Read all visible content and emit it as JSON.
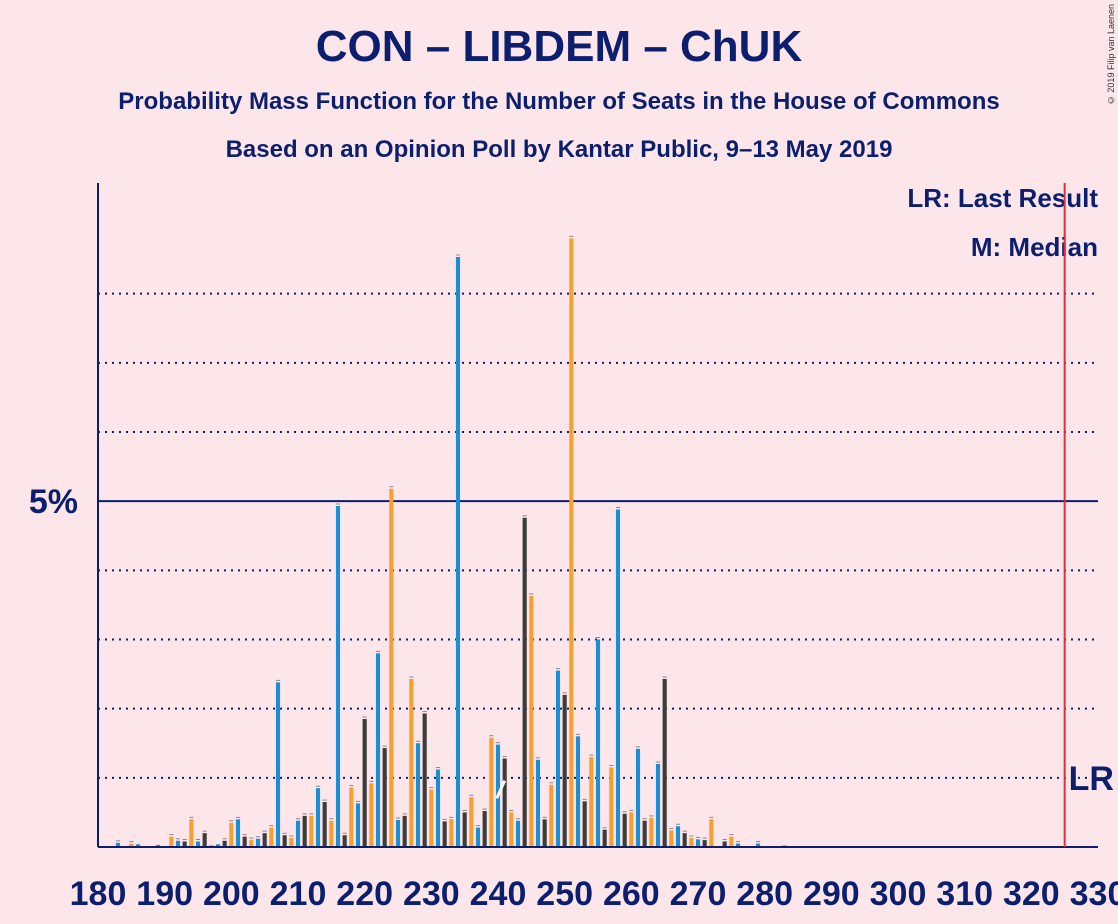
{
  "header": {
    "title": "CON – LIBDEM – ChUK",
    "subtitle1": "Probability Mass Function for the Number of Seats in the House of Commons",
    "subtitle2": "Based on an Opinion Poll by Kantar Public, 9–13 May 2019",
    "copyright": "© 2019 Filip van Laenen"
  },
  "legend": {
    "lr": "LR: Last Result",
    "m": "M: Median"
  },
  "colors": {
    "background": "#fde6ea",
    "axis": "#0c1f6e",
    "series_blue": "#1a8fd6",
    "series_dark": "#3c3c3c",
    "series_orange": "#f5a030",
    "last_result": "#e0303a"
  },
  "chart_data": {
    "type": "bar",
    "xlabel": "",
    "ylabel": "",
    "xlim": [
      180,
      330
    ],
    "ylim": [
      0,
      9.6
    ],
    "yticks": [
      {
        "value": 5,
        "label": "5%"
      }
    ],
    "dotted_gridlines": [
      1,
      2,
      3,
      4,
      6,
      7,
      8
    ],
    "xticks": [
      180,
      190,
      200,
      210,
      220,
      230,
      240,
      250,
      260,
      270,
      280,
      290,
      300,
      310,
      320,
      330
    ],
    "last_result": {
      "seats": 325,
      "label": "LR"
    },
    "median": {
      "seats": 241,
      "label": "M"
    },
    "bars": [
      [
        183,
        0.06
      ],
      [
        185,
        0.05
      ],
      [
        186,
        0.04
      ],
      [
        189,
        0.03
      ],
      [
        191,
        0.15
      ],
      [
        192,
        0.09
      ],
      [
        193,
        0.08
      ],
      [
        194,
        0.4
      ],
      [
        195,
        0.08
      ],
      [
        196,
        0.2
      ],
      [
        197,
        0.03
      ],
      [
        198,
        0.04
      ],
      [
        199,
        0.09
      ],
      [
        200,
        0.35
      ],
      [
        201,
        0.4
      ],
      [
        202,
        0.15
      ],
      [
        203,
        0.1
      ],
      [
        204,
        0.12
      ],
      [
        205,
        0.2
      ],
      [
        206,
        0.28
      ],
      [
        207,
        2.38
      ],
      [
        208,
        0.17
      ],
      [
        209,
        0.13
      ],
      [
        210,
        0.38
      ],
      [
        211,
        0.45
      ],
      [
        212,
        0.45
      ],
      [
        213,
        0.85
      ],
      [
        214,
        0.65
      ],
      [
        215,
        0.38
      ],
      [
        216,
        4.93
      ],
      [
        217,
        0.17
      ],
      [
        218,
        0.86
      ],
      [
        219,
        0.63
      ],
      [
        220,
        1.85
      ],
      [
        221,
        0.92
      ],
      [
        222,
        2.8
      ],
      [
        223,
        1.43
      ],
      [
        224,
        5.18
      ],
      [
        225,
        0.39
      ],
      [
        226,
        0.45
      ],
      [
        227,
        2.43
      ],
      [
        228,
        1.5
      ],
      [
        229,
        1.93
      ],
      [
        230,
        0.83
      ],
      [
        231,
        1.12
      ],
      [
        232,
        0.37
      ],
      [
        233,
        0.4
      ],
      [
        234,
        8.53
      ],
      [
        235,
        0.5
      ],
      [
        236,
        0.72
      ],
      [
        237,
        0.28
      ],
      [
        238,
        0.52
      ],
      [
        239,
        1.58
      ],
      [
        240,
        1.48
      ],
      [
        241,
        1.28
      ],
      [
        242,
        0.5
      ],
      [
        243,
        0.38
      ],
      [
        244,
        4.76
      ],
      [
        245,
        3.63
      ],
      [
        246,
        1.26
      ],
      [
        247,
        0.4
      ],
      [
        248,
        0.9
      ],
      [
        249,
        2.55
      ],
      [
        250,
        2.2
      ],
      [
        251,
        8.8
      ],
      [
        252,
        1.6
      ],
      [
        253,
        0.66
      ],
      [
        254,
        1.3
      ],
      [
        255,
        3.0
      ],
      [
        256,
        0.25
      ],
      [
        257,
        1.15
      ],
      [
        258,
        4.88
      ],
      [
        259,
        0.48
      ],
      [
        260,
        0.5
      ],
      [
        261,
        1.42
      ],
      [
        262,
        0.38
      ],
      [
        263,
        0.42
      ],
      [
        264,
        1.2
      ],
      [
        265,
        2.43
      ],
      [
        266,
        0.24
      ],
      [
        267,
        0.3
      ],
      [
        268,
        0.2
      ],
      [
        269,
        0.13
      ],
      [
        270,
        0.11
      ],
      [
        271,
        0.1
      ],
      [
        272,
        0.4
      ],
      [
        274,
        0.08
      ],
      [
        275,
        0.15
      ],
      [
        276,
        0.05
      ],
      [
        279,
        0.05
      ],
      [
        283,
        0.02
      ],
      [
        289,
        0.01
      ]
    ]
  }
}
